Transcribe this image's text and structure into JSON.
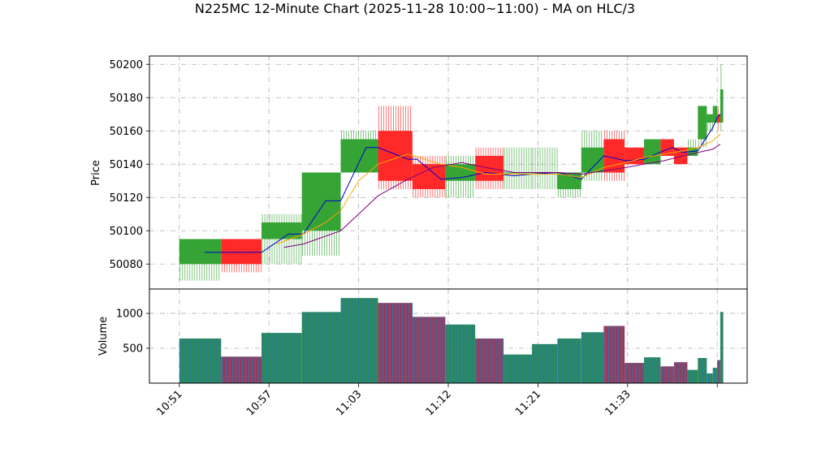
{
  "chart_data": {
    "type": "candlestick",
    "title": "N225MC 12-Minute Chart (2025-11-28 10:00~11:00) - MA on HLC/3",
    "price_panel": {
      "ylabel": "Price",
      "ylim": [
        50065,
        50205
      ],
      "yticks": [
        50080,
        50100,
        50120,
        50140,
        50160,
        50180,
        50200
      ],
      "grid": true
    },
    "volume_panel": {
      "ylabel": "Volume",
      "ylim": [
        0,
        1350
      ],
      "yticks": [
        500,
        1000
      ],
      "grid": true
    },
    "x_axis": {
      "ticks": [
        {
          "label": "10:51",
          "t": 0
        },
        {
          "label": "10:57",
          "t": 6
        },
        {
          "label": "11:03",
          "t": 12
        },
        {
          "label": "11:12",
          "t": 18
        },
        {
          "label": "11:21",
          "t": 24
        },
        {
          "label": "11:33",
          "t": 30
        },
        {
          "label": "",
          "t": 36
        }
      ],
      "range": [
        -2,
        38
      ]
    },
    "candles": [
      {
        "t0": 0,
        "t1": 2.8,
        "open": 50080,
        "high": 50095,
        "low": 50070,
        "close": 50095,
        "volume": 640
      },
      {
        "t0": 2.8,
        "t1": 5.5,
        "open": 50095,
        "high": 50095,
        "low": 50075,
        "close": 50080,
        "volume": 380
      },
      {
        "t0": 5.5,
        "t1": 8.2,
        "open": 50095,
        "high": 50110,
        "low": 50080,
        "close": 50105,
        "volume": 720
      },
      {
        "t0": 8.2,
        "t1": 10.8,
        "open": 50100,
        "high": 50135,
        "low": 50085,
        "close": 50135,
        "volume": 1020
      },
      {
        "t0": 10.8,
        "t1": 13.3,
        "open": 50135,
        "high": 50160,
        "low": 50135,
        "close": 50155,
        "volume": 1220
      },
      {
        "t0": 13.3,
        "t1": 15.6,
        "open": 50160,
        "high": 50175,
        "low": 50125,
        "close": 50130,
        "volume": 1150
      },
      {
        "t0": 15.6,
        "t1": 17.8,
        "open": 50140,
        "high": 50145,
        "low": 50120,
        "close": 50125,
        "volume": 950
      },
      {
        "t0": 17.8,
        "t1": 19.8,
        "open": 50130,
        "high": 50145,
        "low": 50120,
        "close": 50140,
        "volume": 840
      },
      {
        "t0": 19.8,
        "t1": 21.7,
        "open": 50145,
        "high": 50150,
        "low": 50125,
        "close": 50130,
        "volume": 640
      },
      {
        "t0": 21.7,
        "t1": 23.6,
        "open": 50135,
        "high": 50150,
        "low": 50125,
        "close": 50135,
        "volume": 410
      },
      {
        "t0": 23.6,
        "t1": 25.3,
        "open": 50135,
        "high": 50150,
        "low": 50125,
        "close": 50135,
        "volume": 560
      },
      {
        "t0": 25.3,
        "t1": 26.9,
        "open": 50125,
        "high": 50135,
        "low": 50120,
        "close": 50135,
        "volume": 640
      },
      {
        "t0": 26.9,
        "t1": 28.4,
        "open": 50135,
        "high": 50160,
        "low": 50130,
        "close": 50150,
        "volume": 730
      },
      {
        "t0": 28.4,
        "t1": 29.8,
        "open": 50155,
        "high": 50160,
        "low": 50130,
        "close": 50135,
        "volume": 820
      },
      {
        "t0": 29.8,
        "t1": 31.1,
        "open": 50150,
        "high": 50150,
        "low": 50140,
        "close": 50140,
        "volume": 290
      },
      {
        "t0": 31.1,
        "t1": 32.2,
        "open": 50140,
        "high": 50155,
        "low": 50140,
        "close": 50155,
        "volume": 370
      },
      {
        "t0": 32.2,
        "t1": 33.1,
        "open": 50155,
        "high": 50155,
        "low": 50145,
        "close": 50145,
        "volume": 240
      },
      {
        "t0": 33.1,
        "t1": 34.0,
        "open": 50150,
        "high": 50150,
        "low": 50140,
        "close": 50140,
        "volume": 300
      },
      {
        "t0": 34.0,
        "t1": 34.7,
        "open": 50145,
        "high": 50155,
        "low": 50145,
        "close": 50150,
        "volume": 190
      },
      {
        "t0": 34.7,
        "t1": 35.3,
        "open": 50155,
        "high": 50175,
        "low": 50150,
        "close": 50175,
        "volume": 360
      },
      {
        "t0": 35.3,
        "t1": 35.7,
        "open": 50165,
        "high": 50170,
        "low": 50160,
        "close": 50170,
        "volume": 140
      },
      {
        "t0": 35.7,
        "t1": 36.0,
        "open": 50165,
        "high": 50175,
        "low": 50165,
        "close": 50175,
        "volume": 220
      },
      {
        "t0": 36.0,
        "t1": 36.2,
        "open": 50170,
        "high": 50175,
        "low": 50160,
        "close": 50165,
        "volume": 330
      },
      {
        "t0": 36.2,
        "t1": 36.4,
        "open": 50165,
        "high": 50200,
        "low": 50160,
        "close": 50185,
        "volume": 1020
      }
    ],
    "ma_lines": [
      {
        "color": "#0000cc",
        "points": [
          [
            1.7,
            50087
          ],
          [
            3.5,
            50087
          ],
          [
            5.5,
            50087
          ],
          [
            6.5,
            50093
          ],
          [
            7.3,
            50098
          ],
          [
            8.3,
            50098
          ],
          [
            9.8,
            50118
          ],
          [
            10.8,
            50118
          ],
          [
            12.5,
            50150
          ],
          [
            13.3,
            50150
          ],
          [
            15.3,
            50143
          ],
          [
            15.9,
            50143
          ],
          [
            17.5,
            50131
          ],
          [
            18.9,
            50132
          ],
          [
            20.5,
            50135
          ],
          [
            22.4,
            50133
          ],
          [
            23.6,
            50134
          ],
          [
            25.4,
            50135
          ],
          [
            26.9,
            50131
          ],
          [
            28.4,
            50145
          ],
          [
            29.9,
            50142
          ],
          [
            31.1,
            50143
          ],
          [
            32.4,
            50148
          ],
          [
            33.0,
            50150
          ],
          [
            33.7,
            50147
          ],
          [
            34.7,
            50148
          ],
          [
            35.7,
            50162
          ],
          [
            36.0,
            50168
          ],
          [
            36.2,
            50170
          ]
        ]
      },
      {
        "color": "#ffa500",
        "points": [
          [
            6.5,
            50092
          ],
          [
            8.3,
            50098
          ],
          [
            9.8,
            50105
          ],
          [
            10.8,
            50112
          ],
          [
            12.0,
            50130
          ],
          [
            13.3,
            50140
          ],
          [
            15.3,
            50146
          ],
          [
            17.5,
            50140
          ],
          [
            18.9,
            50138
          ],
          [
            20.5,
            50134
          ],
          [
            22.4,
            50134
          ],
          [
            23.6,
            50134
          ],
          [
            25.4,
            50134
          ],
          [
            26.9,
            50132
          ],
          [
            28.4,
            50138
          ],
          [
            29.9,
            50141
          ],
          [
            31.1,
            50144
          ],
          [
            32.4,
            50146
          ],
          [
            33.7,
            50148
          ],
          [
            34.7,
            50150
          ],
          [
            35.7,
            50154
          ],
          [
            36.2,
            50158
          ]
        ]
      },
      {
        "color": "#800080",
        "points": [
          [
            7.0,
            50090
          ],
          [
            8.3,
            50092
          ],
          [
            10.8,
            50100
          ],
          [
            12.0,
            50110
          ],
          [
            13.3,
            50121
          ],
          [
            15.3,
            50131
          ],
          [
            17.0,
            50138
          ],
          [
            18.9,
            50141
          ],
          [
            20.5,
            50138
          ],
          [
            22.4,
            50135
          ],
          [
            23.6,
            50135
          ],
          [
            25.4,
            50135
          ],
          [
            26.9,
            50134
          ],
          [
            28.4,
            50136
          ],
          [
            29.9,
            50138
          ],
          [
            31.1,
            50140
          ],
          [
            32.4,
            50142
          ],
          [
            33.7,
            50145
          ],
          [
            34.7,
            50147
          ],
          [
            35.7,
            50149
          ],
          [
            36.2,
            50152
          ]
        ]
      }
    ],
    "colors": {
      "up": "#2ca02c",
      "down": "#ff2020",
      "volume_up": "#2e8b57",
      "volume_down": "#9b3a5a",
      "volume_stripe": "#1f77b4",
      "grid": "#b0b0b0"
    }
  }
}
